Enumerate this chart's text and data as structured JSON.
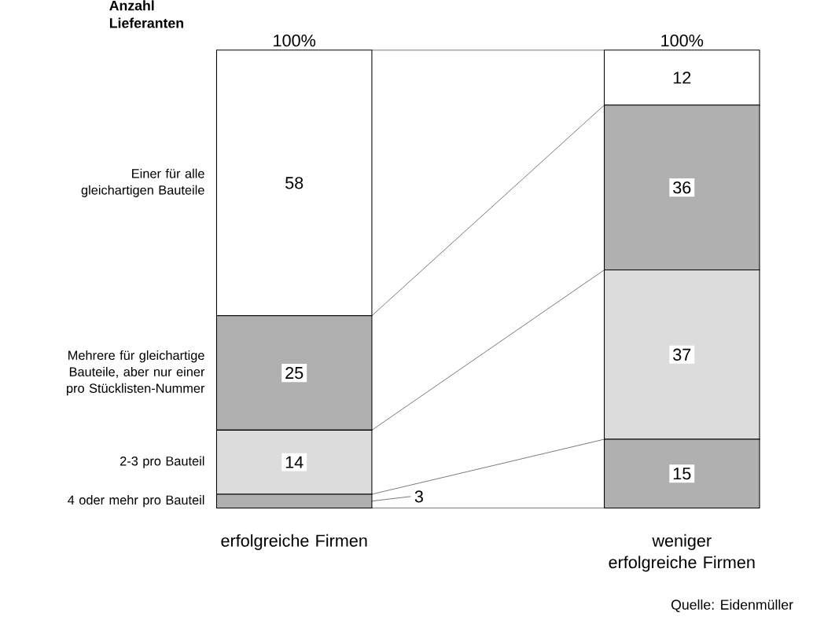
{
  "chart_data": {
    "type": "bar",
    "stacked": true,
    "ylabel": "Anzahl Lieferanten",
    "categories": [
      "erfolgreiche Firmen",
      "weniger erfolgreiche Firmen"
    ],
    "series": [
      {
        "name": "4 oder mehr pro Bauteil",
        "color": "#b0b0b0",
        "values": [
          3,
          15
        ]
      },
      {
        "name": "2-3 pro Bauteil",
        "color": "#dcdcdc",
        "values": [
          14,
          37
        ]
      },
      {
        "name": "Mehrere für gleichartige Bauteile, aber nur einer pro Stücklisten-Nummer",
        "color": "#b0b0b0",
        "values": [
          25,
          36
        ]
      },
      {
        "name": "Einer für alle gleichartigen Bauteile",
        "color": "#ffffff",
        "values": [
          58,
          12
        ]
      }
    ],
    "data_labels": true,
    "totals": [
      "100%",
      "100%"
    ],
    "annotations": [
      "Quelle: Eidenmüller"
    ]
  }
}
